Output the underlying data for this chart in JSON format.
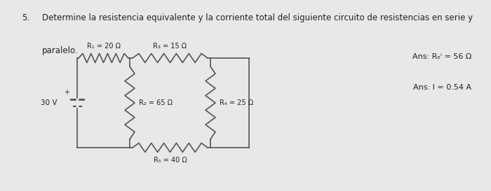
{
  "title_number": "5.",
  "title_line1": "Determine la resistencia equivalente y la corriente total del siguiente circuito de resistencias en serie y",
  "title_line2": "paralelo.",
  "ans1": "Ans: Rₑⁱ = 56 Ω",
  "ans2": "Ans: I = 0.54 A",
  "voltage_label": "30 V",
  "R1_label": "R₁ = 20 Ω",
  "R2_label": "R₂ = 65 Ω",
  "R3_label": "R₃ = 15 Ω",
  "R4_label": "R₄ = 25 Ω",
  "R5_label": "R₅ = 40 Ω",
  "bg_color": "#e8e8e8",
  "line_color": "#555555",
  "text_color": "#222222",
  "font_size_title": 8.5,
  "font_size_labels": 7.0,
  "font_size_ans": 8.0
}
